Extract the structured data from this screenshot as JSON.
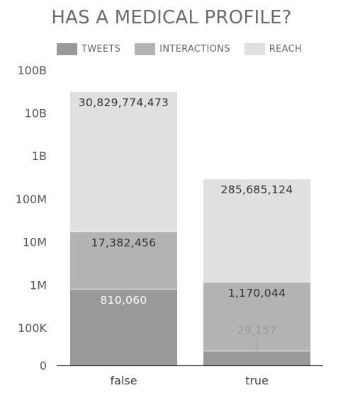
{
  "chart_data": {
    "type": "bar",
    "stacked": true,
    "title": "HAS A MEDICAL PROFILE?",
    "categories": [
      "false",
      "true"
    ],
    "yscale": "log",
    "ylabel": "",
    "xlabel": "",
    "yticks": [
      "0",
      "100K",
      "1M",
      "10M",
      "100M",
      "1B",
      "10B",
      "100B"
    ],
    "grid": false,
    "legend_position": "top",
    "series": [
      {
        "name": "TWEETS",
        "color": "#999999",
        "values": [
          810060,
          29157
        ],
        "labels": [
          "810,060",
          "29,157"
        ]
      },
      {
        "name": "INTERACTIONS",
        "color": "#b3b3b3",
        "values": [
          17382456,
          1170044
        ],
        "labels": [
          "17,382,456",
          "1,170,044"
        ]
      },
      {
        "name": "REACH",
        "color": "#e0e0e0",
        "values": [
          30829774473,
          285685124
        ],
        "labels": [
          "30,829,774,473",
          "285,685,124"
        ]
      }
    ]
  }
}
